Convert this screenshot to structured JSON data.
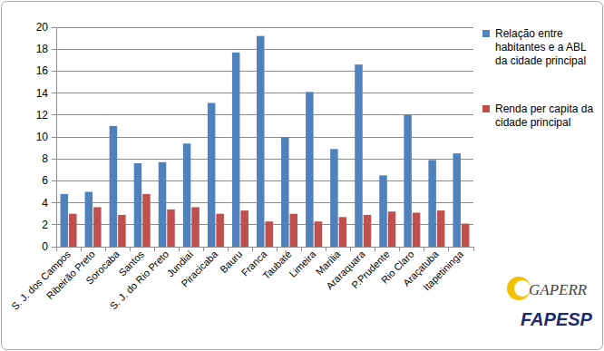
{
  "chart_data": {
    "type": "bar",
    "categories": [
      "S. J. dos Campos",
      "Ribeirão Preto",
      "Sorocaba",
      "Santos",
      "S. J. do Rio Preto",
      "Jundiaí",
      "Piracicaba",
      "Bauru",
      "Franca",
      "Taubaté",
      "Limeira",
      "Marília",
      "Araraquara",
      "P.Prudente",
      "Rio Claro",
      "Araçatuba",
      "Itapetininga"
    ],
    "series": [
      {
        "name": "Relação entre habitantes e a ABL da cidade principal",
        "color": "#4f81bd",
        "values": [
          4.8,
          5.0,
          11.0,
          7.6,
          7.7,
          9.4,
          13.1,
          17.7,
          19.2,
          10.0,
          14.1,
          8.9,
          16.6,
          6.5,
          12.0,
          7.9,
          8.5
        ]
      },
      {
        "name": "Renda per capita da cidade principal",
        "color": "#c0504d",
        "values": [
          3.0,
          3.6,
          2.9,
          4.8,
          3.4,
          3.6,
          3.0,
          3.3,
          2.3,
          3.0,
          2.3,
          2.7,
          2.9,
          3.2,
          3.1,
          3.3,
          2.1
        ]
      }
    ],
    "ylim": [
      0,
      20
    ],
    "yticks": [
      0,
      2,
      4,
      6,
      8,
      10,
      12,
      14,
      16,
      18,
      20
    ],
    "grid": true,
    "legend": "right",
    "annotations": [
      "GAPERR",
      "FAPESP"
    ]
  }
}
